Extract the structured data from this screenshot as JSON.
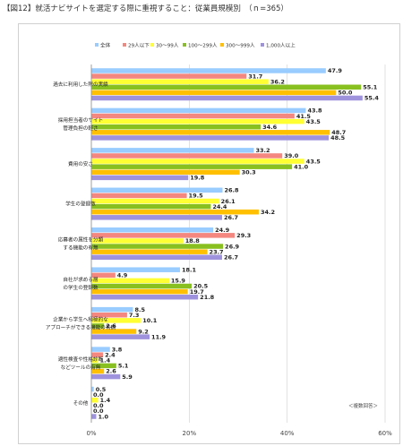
{
  "title": "【図12】就活ナビサイトを選定する際に重視すること：従業員規模別　（ｎ=365）",
  "note": "＜複数回答＞",
  "chart_data": {
    "type": "bar",
    "orientation": "horizontal",
    "title": "【図12】就活ナビサイトを選定する際に重視すること：従業員規模別　（ｎ=365）",
    "xlim": [
      0,
      60
    ],
    "x_ticks": [
      "0%",
      "20%",
      "40%",
      "60%"
    ],
    "legend_position": "top",
    "grid": true,
    "categories": [
      [
        "過去に利用した際の実績"
      ],
      [
        "採用担当者のサイト",
        "管理負担の軽さ"
      ],
      [
        "費用の安さ"
      ],
      [
        "学生の登録数"
      ],
      [
        "応募者の属性を分類",
        "する機能の有無"
      ],
      [
        "自社が求める層",
        "の学生の登録数"
      ],
      [
        "企業から学生へ積極的な",
        "アプローチができる機能の有無"
      ],
      [
        "適性検査や性格診断",
        "などツールの有無"
      ],
      [
        "その他"
      ]
    ],
    "series": [
      {
        "name": "全体",
        "color": "#99ccff",
        "values": [
          47.9,
          43.8,
          33.2,
          26.8,
          24.9,
          18.1,
          8.5,
          3.8,
          0.5
        ]
      },
      {
        "name": "29人以下",
        "color": "#f4877f",
        "values": [
          31.7,
          41.5,
          39.0,
          19.5,
          29.3,
          4.9,
          7.3,
          2.4,
          0.0
        ]
      },
      {
        "name": "30～99人",
        "color": "#ffff33",
        "values": [
          36.2,
          43.5,
          43.5,
          26.1,
          18.8,
          15.9,
          10.1,
          1.4,
          1.4
        ]
      },
      {
        "name": "100～299人",
        "color": "#88c020",
        "values": [
          55.1,
          34.6,
          41.0,
          24.4,
          26.9,
          20.5,
          2.6,
          5.1,
          0.0
        ]
      },
      {
        "name": "300～999人",
        "color": "#ffc000",
        "values": [
          50.0,
          48.7,
          30.3,
          34.2,
          23.7,
          19.7,
          9.2,
          2.6,
          0.0
        ]
      },
      {
        "name": "1,000人以上",
        "color": "#9f92dd",
        "values": [
          55.4,
          48.5,
          19.8,
          26.7,
          26.7,
          21.8,
          11.9,
          5.9,
          1.0
        ]
      }
    ]
  }
}
